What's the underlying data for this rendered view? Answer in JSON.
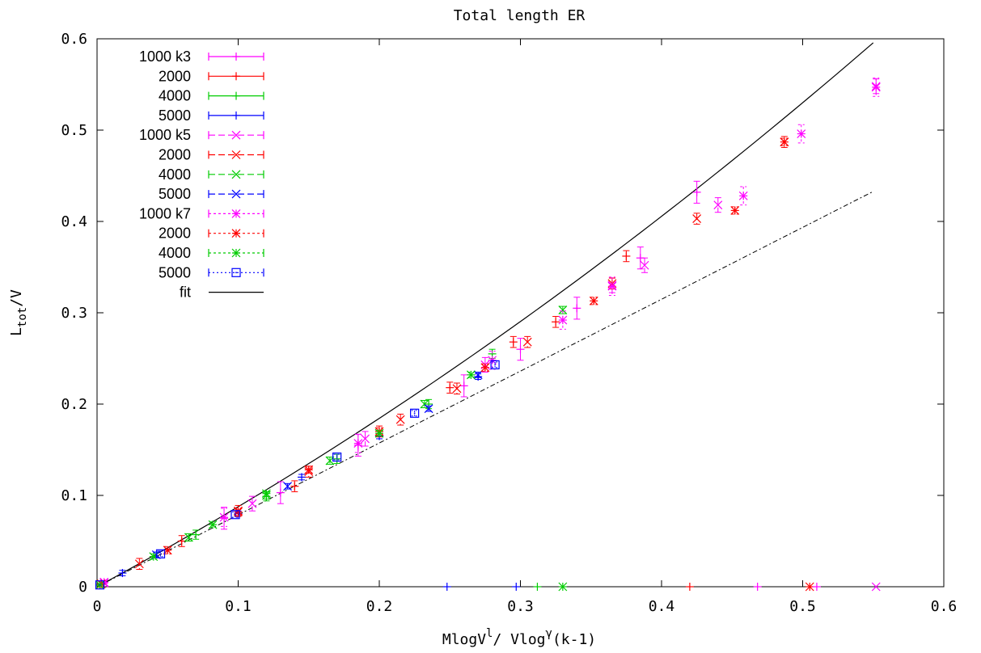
{
  "chart_data": {
    "type": "scatter",
    "title": "Total length ER",
    "xlabel": {
      "base": "MlogV",
      "sup1": "l",
      "mid": "/ Vlog",
      "sup2": "γ",
      "tail": "(k-1)"
    },
    "ylabel": {
      "base": "L",
      "sub": "tot",
      "tail": "/V"
    },
    "xlim": [
      0,
      0.6
    ],
    "ylim": [
      0,
      0.6
    ],
    "xticks": [
      "0",
      "0.1",
      "0.2",
      "0.3",
      "0.4",
      "0.5",
      "0.6"
    ],
    "yticks": [
      "0",
      "0.1",
      "0.2",
      "0.3",
      "0.4",
      "0.5",
      "0.6"
    ],
    "legend_position": "top-left",
    "series": [
      {
        "name": "1000 k3",
        "color": "#ff00ff",
        "marker": "plus",
        "dash": "",
        "points": [
          [
            0.005,
            0.005
          ],
          [
            0.09,
            0.075
          ],
          [
            0.13,
            0.103
          ],
          [
            0.185,
            0.155
          ],
          [
            0.26,
            0.22
          ],
          [
            0.3,
            0.26
          ],
          [
            0.34,
            0.305
          ],
          [
            0.385,
            0.36
          ],
          [
            0.425,
            0.432
          ]
        ],
        "err": 0.012
      },
      {
        "name": "2000",
        "color": "#ff0000",
        "marker": "plus",
        "dash": "",
        "points": [
          [
            0.003,
            0.003
          ],
          [
            0.06,
            0.05
          ],
          [
            0.14,
            0.11
          ],
          [
            0.2,
            0.17
          ],
          [
            0.25,
            0.218
          ],
          [
            0.295,
            0.268
          ],
          [
            0.325,
            0.29
          ],
          [
            0.375,
            0.362
          ]
        ],
        "err": 0.006
      },
      {
        "name": "4000",
        "color": "#00cc00",
        "marker": "plus",
        "dash": "",
        "points": [
          [
            0.002,
            0.002
          ],
          [
            0.07,
            0.057
          ],
          [
            0.12,
            0.099
          ],
          [
            0.17,
            0.14
          ],
          [
            0.235,
            0.2
          ],
          [
            0.28,
            0.255
          ]
        ],
        "err": 0.005
      },
      {
        "name": "5000",
        "color": "#0000ff",
        "marker": "plus",
        "dash": "",
        "points": [
          [
            0.018,
            0.015
          ],
          [
            0.1,
            0.08
          ],
          [
            0.145,
            0.12
          ],
          [
            0.2,
            0.165
          ],
          [
            0.27,
            0.23
          ]
        ],
        "err": 0.003
      },
      {
        "name": "1000 k5",
        "color": "#ff00ff",
        "marker": "x",
        "dash": "8,4",
        "points": [
          [
            0.005,
            0.005
          ],
          [
            0.11,
            0.091
          ],
          [
            0.19,
            0.162
          ],
          [
            0.275,
            0.243
          ],
          [
            0.365,
            0.33
          ],
          [
            0.388,
            0.352
          ],
          [
            0.44,
            0.418
          ],
          [
            0.552,
            0.548
          ]
        ],
        "err": 0.008
      },
      {
        "name": "2000",
        "color": "#ff0000",
        "marker": "x",
        "dash": "8,4",
        "points": [
          [
            0.003,
            0.003
          ],
          [
            0.03,
            0.025
          ],
          [
            0.1,
            0.083
          ],
          [
            0.15,
            0.126
          ],
          [
            0.215,
            0.183
          ],
          [
            0.255,
            0.217
          ],
          [
            0.305,
            0.268
          ],
          [
            0.365,
            0.332
          ],
          [
            0.425,
            0.403
          ],
          [
            0.487,
            0.487
          ]
        ],
        "err": 0.006
      },
      {
        "name": "4000",
        "color": "#00cc00",
        "marker": "x",
        "dash": "8,4",
        "points": [
          [
            0.002,
            0.002
          ],
          [
            0.065,
            0.054
          ],
          [
            0.12,
            0.1
          ],
          [
            0.165,
            0.138
          ],
          [
            0.232,
            0.2
          ],
          [
            0.33,
            0.303
          ]
        ],
        "err": 0.004
      },
      {
        "name": "5000",
        "color": "#0000ff",
        "marker": "x",
        "dash": "8,4",
        "points": [
          [
            0.042,
            0.035
          ],
          [
            0.135,
            0.11
          ],
          [
            0.235,
            0.195
          ],
          [
            0.27,
            0.232
          ]
        ],
        "err": 0.003
      },
      {
        "name": "1000 k7",
        "color": "#ff00ff",
        "marker": "star",
        "dash": "3,3",
        "points": [
          [
            0.005,
            0.004
          ],
          [
            0.09,
            0.076
          ],
          [
            0.185,
            0.157
          ],
          [
            0.28,
            0.248
          ],
          [
            0.33,
            0.292
          ],
          [
            0.365,
            0.329
          ],
          [
            0.458,
            0.428
          ],
          [
            0.499,
            0.496
          ],
          [
            0.552,
            0.547
          ]
        ],
        "err": 0.01
      },
      {
        "name": "2000",
        "color": "#ff0000",
        "marker": "star",
        "dash": "3,3",
        "points": [
          [
            0.003,
            0.003
          ],
          [
            0.05,
            0.04
          ],
          [
            0.1,
            0.082
          ],
          [
            0.15,
            0.128
          ],
          [
            0.2,
            0.17
          ],
          [
            0.275,
            0.24
          ],
          [
            0.352,
            0.313
          ],
          [
            0.452,
            0.412
          ],
          [
            0.487,
            0.487
          ],
          [
            0.505,
            0.0
          ]
        ],
        "err": 0.004
      },
      {
        "name": "4000",
        "color": "#00cc00",
        "marker": "star",
        "dash": "3,3",
        "points": [
          [
            0.002,
            0.002
          ],
          [
            0.04,
            0.033
          ],
          [
            0.082,
            0.068
          ],
          [
            0.12,
            0.102
          ],
          [
            0.2,
            0.168
          ],
          [
            0.265,
            0.232
          ],
          [
            0.33,
            0.0
          ]
        ],
        "err": 0.003
      },
      {
        "name": "5000",
        "color": "#0000ff",
        "marker": "square",
        "dash": "2,3",
        "points": [
          [
            0.002,
            0.002
          ],
          [
            0.045,
            0.036
          ],
          [
            0.098,
            0.079
          ],
          [
            0.17,
            0.142
          ],
          [
            0.225,
            0.19
          ],
          [
            0.282,
            0.243
          ]
        ],
        "err": 0.003
      },
      {
        "name": "fit",
        "color": "#000000",
        "type": "line",
        "x0": 0,
        "x1": 0.55,
        "a": 0.83,
        "b": 0.46
      }
    ],
    "reference_line": {
      "x0": 0,
      "x1": 0.55,
      "slope": 0.787,
      "dash": "6,3,2,3"
    },
    "axis_ticks_extra": [
      {
        "x": 0.248,
        "color": "#0000ff",
        "marker": "plus"
      },
      {
        "x": 0.297,
        "color": "#0000ff",
        "marker": "plus"
      },
      {
        "x": 0.312,
        "color": "#00cc00",
        "marker": "plus"
      },
      {
        "x": 0.42,
        "color": "#ff0000",
        "marker": "plus"
      },
      {
        "x": 0.468,
        "color": "#ff00ff",
        "marker": "plus"
      },
      {
        "x": 0.51,
        "color": "#ff00ff",
        "marker": "plus"
      },
      {
        "x": 0.552,
        "color": "#ff00ff",
        "marker": "x"
      }
    ]
  }
}
